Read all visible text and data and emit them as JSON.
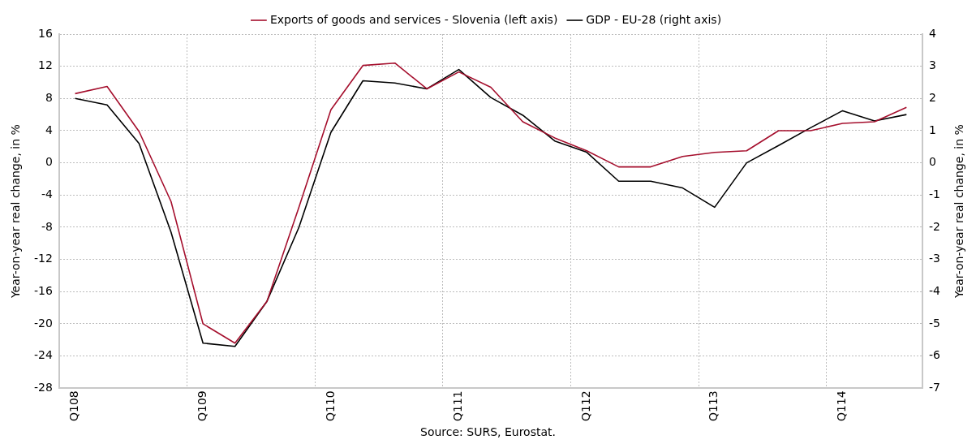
{
  "chart_data": {
    "type": "line",
    "ylabel": "Year-on-year real change, in %",
    "y2label": "Year-on-year real change, in %",
    "categories": [
      "Q108",
      null,
      null,
      null,
      "Q109",
      null,
      null,
      null,
      "Q110",
      null,
      null,
      null,
      "Q111",
      null,
      null,
      null,
      "Q112",
      null,
      null,
      null,
      "Q113",
      null,
      null,
      null,
      "Q114",
      null,
      null
    ],
    "series": [
      {
        "name": "Exports of goods and services - Slovenia (left axis)",
        "color": "#a50f2d",
        "values": [
          8.6,
          9.5,
          3.9,
          -4.8,
          -20.0,
          -22.4,
          -17.2,
          -5.5,
          6.6,
          12.1,
          12.4,
          9.2,
          11.3,
          9.4,
          5.1,
          3.1,
          1.5,
          -0.5,
          -0.5,
          0.8,
          1.3,
          1.5,
          4.0,
          4.0,
          4.9,
          5.1,
          6.9
        ]
      },
      {
        "name": "GDP - EU-28 (right axis)",
        "color": "#000000",
        "axis": "y2",
        "values": [
          2.0,
          1.8,
          0.6,
          -2.15,
          -5.6,
          -5.7,
          -4.3,
          -2.0,
          0.95,
          2.55,
          2.48,
          2.3,
          2.9,
          2.03,
          1.48,
          0.68,
          0.33,
          -0.57,
          -0.57,
          -0.78,
          -1.38,
          0.0,
          0.54,
          1.09,
          1.62,
          1.3,
          1.5
        ]
      }
    ],
    "ylim": [
      -28,
      16
    ],
    "yticks": [
      -28,
      -24,
      -20,
      -16,
      -12,
      -8,
      -4,
      0,
      4,
      8,
      12,
      16
    ],
    "y2lim": [
      -7,
      4
    ],
    "y2ticks": [
      -7,
      -6,
      -5,
      -4,
      -3,
      -2,
      -1,
      0,
      1,
      2,
      3,
      4
    ],
    "grid": true,
    "legend": "top",
    "marker": "none",
    "line_style": "solid",
    "annotations": [
      "Source: SURS, Eurostat."
    ]
  }
}
